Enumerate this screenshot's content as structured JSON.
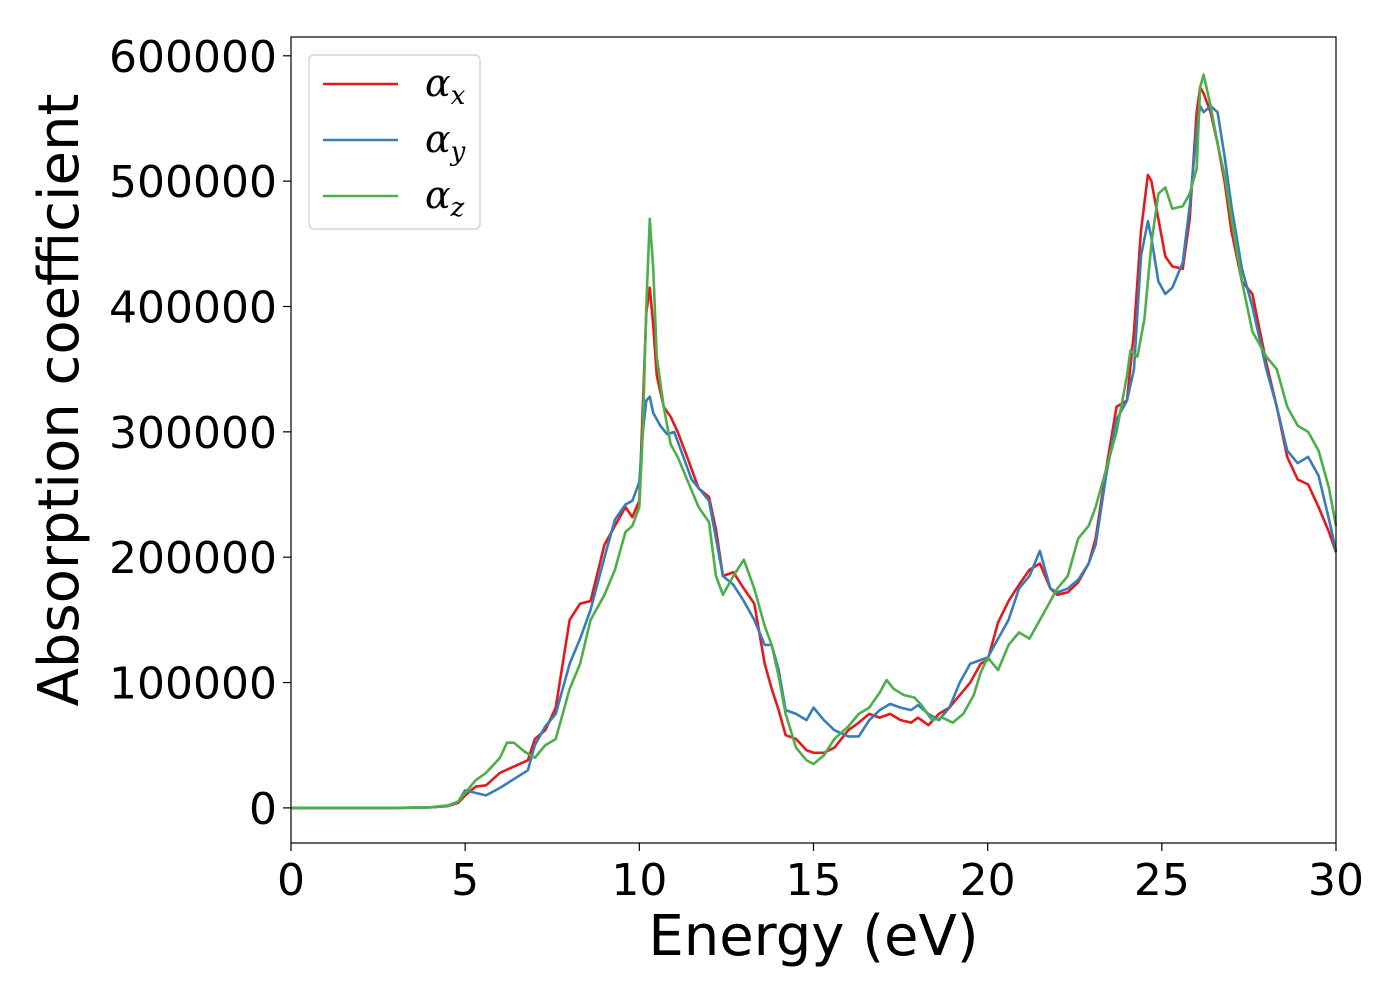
{
  "chart_data": {
    "type": "line",
    "title": "",
    "xlabel": "Energy (eV)",
    "ylabel": "Absorption coefficient",
    "xlim": [
      0,
      30
    ],
    "ylim": [
      -28000,
      615000
    ],
    "xticks": [
      0,
      5,
      10,
      15,
      20,
      25,
      30
    ],
    "yticks": [
      0,
      100000,
      200000,
      300000,
      400000,
      500000,
      600000
    ],
    "grid": false,
    "legend_position": "top-left",
    "series": [
      {
        "name": "αx",
        "legend_symbol": "α",
        "legend_subscript": "x",
        "color": "#e41a1c",
        "x": [
          0,
          1,
          2,
          3,
          4,
          4.5,
          4.8,
          5,
          5.3,
          5.6,
          6,
          6.4,
          6.8,
          7,
          7.3,
          7.6,
          8,
          8.3,
          8.6,
          9,
          9.3,
          9.6,
          9.8,
          10,
          10.1,
          10.2,
          10.3,
          10.4,
          10.5,
          10.7,
          10.9,
          11.1,
          11.4,
          11.7,
          12,
          12.2,
          12.4,
          12.7,
          13,
          13.3,
          13.6,
          13.8,
          14,
          14.2,
          14.5,
          14.8,
          15,
          15.3,
          15.6,
          16,
          16.3,
          16.6,
          16.9,
          17.2,
          17.5,
          17.8,
          18,
          18.3,
          18.6,
          18.9,
          19.2,
          19.5,
          19.8,
          20,
          20.3,
          20.6,
          20.9,
          21.2,
          21.5,
          21.8,
          22,
          22.3,
          22.6,
          22.9,
          23.1,
          23.4,
          23.7,
          24,
          24.2,
          24.4,
          24.6,
          24.7,
          24.9,
          25.1,
          25.3,
          25.6,
          25.8,
          26,
          26.1,
          26.2,
          26.4,
          26.6,
          26.8,
          27,
          27.3,
          27.6,
          28,
          28.3,
          28.6,
          28.9,
          29.2,
          29.5,
          29.8,
          30
        ],
        "y": [
          0,
          0,
          0,
          0,
          500,
          1500,
          4000,
          10000,
          17000,
          18000,
          28000,
          33000,
          38000,
          55000,
          62000,
          80000,
          150000,
          163000,
          165000,
          210000,
          225000,
          240000,
          232000,
          245000,
          320000,
          395000,
          415000,
          385000,
          345000,
          320000,
          312000,
          300000,
          278000,
          255000,
          248000,
          222000,
          185000,
          188000,
          175000,
          163000,
          115000,
          95000,
          78000,
          58000,
          55000,
          46000,
          44000,
          44000,
          48000,
          62000,
          68000,
          75000,
          72000,
          75000,
          70000,
          68000,
          72000,
          66000,
          75000,
          80000,
          90000,
          100000,
          115000,
          118000,
          148000,
          165000,
          178000,
          190000,
          195000,
          175000,
          170000,
          172000,
          180000,
          195000,
          215000,
          270000,
          320000,
          325000,
          380000,
          460000,
          505000,
          500000,
          470000,
          440000,
          432000,
          430000,
          470000,
          555000,
          575000,
          570000,
          555000,
          530000,
          500000,
          460000,
          420000,
          410000,
          355000,
          320000,
          280000,
          262000,
          258000,
          240000,
          220000,
          204000
        ]
      },
      {
        "name": "αy",
        "legend_symbol": "α",
        "legend_subscript": "y",
        "color": "#377eb8",
        "x": [
          0,
          1,
          2,
          3,
          4,
          4.5,
          4.8,
          5,
          5.3,
          5.6,
          6,
          6.4,
          6.8,
          7,
          7.3,
          7.6,
          8,
          8.3,
          8.6,
          9,
          9.3,
          9.6,
          9.8,
          10,
          10.1,
          10.2,
          10.3,
          10.4,
          10.6,
          10.8,
          11,
          11.2,
          11.5,
          11.8,
          12,
          12.2,
          12.4,
          12.7,
          13,
          13.3,
          13.6,
          13.8,
          14,
          14.2,
          14.5,
          14.8,
          15,
          15.3,
          15.6,
          16,
          16.3,
          16.6,
          16.9,
          17.2,
          17.5,
          17.8,
          18,
          18.3,
          18.6,
          18.9,
          19.2,
          19.5,
          19.8,
          20,
          20.3,
          20.6,
          20.9,
          21.2,
          21.5,
          21.8,
          22,
          22.3,
          22.6,
          22.9,
          23.1,
          23.4,
          23.7,
          24,
          24.2,
          24.4,
          24.6,
          24.7,
          24.9,
          25.1,
          25.3,
          25.6,
          25.8,
          26,
          26.1,
          26.2,
          26.4,
          26.6,
          26.8,
          27,
          27.3,
          27.6,
          28,
          28.3,
          28.6,
          28.9,
          29.2,
          29.5,
          29.8,
          30
        ],
        "y": [
          0,
          0,
          0,
          0,
          500,
          1500,
          5000,
          14000,
          12000,
          10000,
          16000,
          23000,
          30000,
          50000,
          65000,
          75000,
          115000,
          135000,
          158000,
          200000,
          230000,
          242000,
          245000,
          260000,
          300000,
          325000,
          328000,
          315000,
          305000,
          298000,
          300000,
          285000,
          262000,
          252000,
          245000,
          215000,
          185000,
          178000,
          165000,
          150000,
          130000,
          130000,
          110000,
          78000,
          75000,
          70000,
          80000,
          70000,
          62000,
          57000,
          57000,
          70000,
          78000,
          83000,
          80000,
          78000,
          82000,
          75000,
          70000,
          80000,
          100000,
          115000,
          118000,
          120000,
          135000,
          150000,
          175000,
          185000,
          205000,
          175000,
          172000,
          175000,
          182000,
          195000,
          210000,
          265000,
          310000,
          325000,
          350000,
          440000,
          468000,
          455000,
          420000,
          410000,
          415000,
          435000,
          480000,
          540000,
          560000,
          555000,
          560000,
          555000,
          520000,
          480000,
          430000,
          400000,
          350000,
          320000,
          285000,
          275000,
          280000,
          265000,
          230000,
          205000
        ]
      },
      {
        "name": "αz",
        "legend_symbol": "α",
        "legend_subscript": "z",
        "color": "#4daf4a",
        "x": [
          0,
          1,
          2,
          3,
          4,
          4.5,
          4.8,
          5,
          5.3,
          5.6,
          6,
          6.2,
          6.4,
          6.7,
          7,
          7.3,
          7.6,
          8,
          8.3,
          8.6,
          9,
          9.3,
          9.6,
          9.8,
          10,
          10.1,
          10.2,
          10.3,
          10.4,
          10.5,
          10.7,
          10.9,
          11.1,
          11.4,
          11.7,
          12,
          12.2,
          12.4,
          12.7,
          13,
          13.3,
          13.6,
          13.8,
          14,
          14.2,
          14.5,
          14.8,
          15,
          15.3,
          15.6,
          16,
          16.3,
          16.6,
          16.9,
          17.1,
          17.3,
          17.6,
          17.9,
          18.1,
          18.4,
          18.7,
          19,
          19.3,
          19.6,
          19.8,
          20,
          20.3,
          20.6,
          20.9,
          21.2,
          21.5,
          21.8,
          22,
          22.3,
          22.6,
          22.9,
          23.1,
          23.4,
          23.7,
          24,
          24.1,
          24.3,
          24.5,
          24.7,
          24.9,
          25.1,
          25.3,
          25.6,
          25.8,
          26,
          26.1,
          26.2,
          26.4,
          26.6,
          26.8,
          27,
          27.3,
          27.6,
          28,
          28.3,
          28.6,
          28.9,
          29.2,
          29.5,
          29.8,
          30
        ],
        "y": [
          0,
          0,
          0,
          0,
          500,
          2000,
          5000,
          12000,
          22000,
          28000,
          40000,
          52000,
          52000,
          45000,
          40000,
          50000,
          55000,
          95000,
          115000,
          150000,
          170000,
          190000,
          220000,
          225000,
          240000,
          300000,
          400000,
          470000,
          430000,
          360000,
          320000,
          290000,
          280000,
          260000,
          240000,
          228000,
          185000,
          170000,
          185000,
          198000,
          175000,
          145000,
          130000,
          105000,
          75000,
          48000,
          38000,
          35000,
          42000,
          55000,
          65000,
          75000,
          80000,
          92000,
          102000,
          95000,
          90000,
          88000,
          82000,
          70000,
          72000,
          68000,
          75000,
          90000,
          108000,
          120000,
          110000,
          130000,
          140000,
          135000,
          150000,
          165000,
          175000,
          185000,
          215000,
          225000,
          240000,
          270000,
          300000,
          345000,
          365000,
          360000,
          390000,
          450000,
          490000,
          495000,
          478000,
          480000,
          490000,
          510000,
          575000,
          585000,
          560000,
          530000,
          505000,
          470000,
          420000,
          380000,
          360000,
          350000,
          320000,
          305000,
          300000,
          285000,
          255000,
          225000
        ]
      }
    ]
  }
}
